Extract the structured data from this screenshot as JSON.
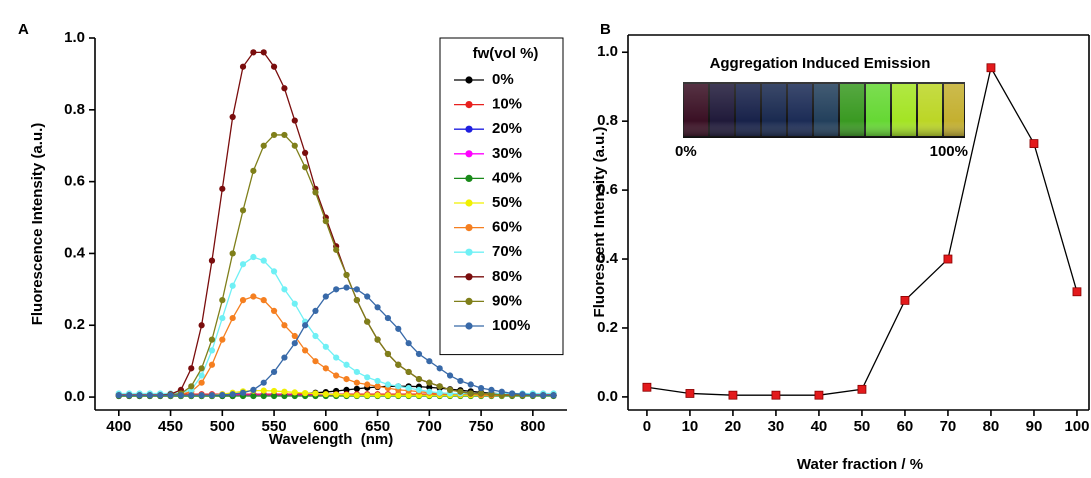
{
  "chart_data": [
    {
      "type": "line",
      "panel_label": "A",
      "x_label": "Wavelength  (nm)",
      "y_label": "Fluorescence Intensity (a.u.)",
      "legend_title": "fw(vol %)",
      "marker": "circle",
      "box": false,
      "xlim": [
        377,
        833
      ],
      "ylim": [
        -0.036,
        1.0
      ],
      "xticks": [
        400,
        450,
        500,
        550,
        600,
        650,
        700,
        750,
        800
      ],
      "yticks": [
        {
          "value": 0,
          "label": "0.0"
        },
        0.2,
        0.4,
        0.6,
        0.8,
        {
          "value": 1,
          "label": "1.0"
        }
      ],
      "x": [
        400,
        410,
        420,
        430,
        440,
        450,
        460,
        470,
        480,
        490,
        500,
        510,
        520,
        530,
        540,
        550,
        560,
        570,
        580,
        590,
        600,
        610,
        620,
        630,
        640,
        650,
        660,
        670,
        680,
        690,
        700,
        710,
        720,
        730,
        740,
        750,
        760,
        770,
        780,
        790,
        800,
        810,
        820
      ],
      "series": [
        {
          "name": "0%",
          "color": "#000000",
          "values": [
            0.003,
            0.003,
            0.003,
            0.003,
            0.003,
            0.003,
            0.003,
            0.003,
            0.003,
            0.003,
            0.003,
            0.003,
            0.004,
            0.004,
            0.005,
            0.006,
            0.007,
            0.008,
            0.01,
            0.012,
            0.014,
            0.017,
            0.02,
            0.023,
            0.026,
            0.028,
            0.03,
            0.03,
            0.03,
            0.029,
            0.027,
            0.025,
            0.022,
            0.019,
            0.016,
            0.013,
            0.011,
            0.009,
            0.007,
            0.006,
            0.005,
            0.005,
            0.004
          ]
        },
        {
          "name": "10%",
          "color": "#e8201e",
          "values": [
            0.008,
            0.008,
            0.008,
            0.008,
            0.008,
            0.008,
            0.008,
            0.008,
            0.008,
            0.008,
            0.008,
            0.008,
            0.008,
            0.008,
            0.008,
            0.008,
            0.008,
            0.008,
            0.008,
            0.008,
            0.008,
            0.008,
            0.008,
            0.008,
            0.008,
            0.008,
            0.008,
            0.008,
            0.008,
            0.008,
            0.008,
            0.008,
            0.008,
            0.008,
            0.008,
            0.008,
            0.008,
            0.008,
            0.008,
            0.008,
            0.008,
            0.008,
            0.008
          ]
        },
        {
          "name": "20%",
          "color": "#1f1fe0",
          "values": [
            0.005,
            0.005,
            0.005,
            0.005,
            0.005,
            0.005,
            0.005,
            0.005,
            0.005,
            0.005,
            0.005,
            0.005,
            0.005,
            0.005,
            0.005,
            0.005,
            0.005,
            0.005,
            0.005,
            0.005,
            0.005,
            0.005,
            0.005,
            0.005,
            0.005,
            0.005,
            0.005,
            0.005,
            0.005,
            0.005,
            0.005,
            0.005,
            0.005,
            0.005,
            0.005,
            0.005,
            0.005,
            0.005,
            0.005,
            0.005,
            0.005,
            0.005,
            0.005
          ]
        },
        {
          "name": "30%",
          "color": "#ff00ff",
          "values": [
            0.005,
            0.005,
            0.005,
            0.005,
            0.005,
            0.005,
            0.005,
            0.005,
            0.005,
            0.005,
            0.005,
            0.005,
            0.005,
            0.005,
            0.005,
            0.005,
            0.005,
            0.005,
            0.005,
            0.005,
            0.005,
            0.005,
            0.005,
            0.005,
            0.005,
            0.005,
            0.005,
            0.005,
            0.005,
            0.005,
            0.005,
            0.005,
            0.005,
            0.005,
            0.005,
            0.005,
            0.005,
            0.005,
            0.005,
            0.005,
            0.005,
            0.005,
            0.005
          ]
        },
        {
          "name": "40%",
          "color": "#1a8a1a",
          "values": [
            0.003,
            0.003,
            0.003,
            0.003,
            0.003,
            0.003,
            0.003,
            0.003,
            0.003,
            0.003,
            0.003,
            0.003,
            0.003,
            0.003,
            0.003,
            0.003,
            0.003,
            0.003,
            0.003,
            0.003,
            0.003,
            0.003,
            0.003,
            0.003,
            0.003,
            0.003,
            0.003,
            0.003,
            0.003,
            0.003,
            0.003,
            0.003,
            0.003,
            0.003,
            0.003,
            0.003,
            0.003,
            0.003,
            0.003,
            0.003,
            0.003,
            0.003,
            0.003
          ]
        },
        {
          "name": "50%",
          "color": "#f0f000",
          "values": [
            0.005,
            0.005,
            0.005,
            0.005,
            0.005,
            0.005,
            0.005,
            0.005,
            0.005,
            0.005,
            0.008,
            0.012,
            0.016,
            0.018,
            0.018,
            0.017,
            0.015,
            0.013,
            0.011,
            0.01,
            0.008,
            0.007,
            0.006,
            0.005,
            0.005,
            0.005,
            0.005,
            0.005,
            0.005,
            0.005,
            0.005,
            0.005,
            0.005,
            0.005,
            0.005,
            0.005,
            0.005,
            0.005,
            0.005,
            0.005,
            0.005,
            0.005,
            0.005
          ]
        },
        {
          "name": "60%",
          "color": "#f57f20",
          "values": [
            0.005,
            0.005,
            0.005,
            0.005,
            0.005,
            0.005,
            0.008,
            0.015,
            0.04,
            0.09,
            0.16,
            0.22,
            0.27,
            0.28,
            0.27,
            0.24,
            0.2,
            0.17,
            0.13,
            0.1,
            0.08,
            0.06,
            0.05,
            0.04,
            0.035,
            0.03,
            0.025,
            0.02,
            0.018,
            0.015,
            0.012,
            0.01,
            0.01,
            0.008,
            0.008,
            0.006,
            0.005,
            0.005,
            0.005,
            0.005,
            0.005,
            0.005,
            0.005
          ]
        },
        {
          "name": "70%",
          "color": "#6ff0f5",
          "values": [
            0.01,
            0.01,
            0.01,
            0.01,
            0.01,
            0.01,
            0.012,
            0.02,
            0.06,
            0.13,
            0.22,
            0.31,
            0.37,
            0.39,
            0.38,
            0.35,
            0.3,
            0.26,
            0.21,
            0.17,
            0.14,
            0.11,
            0.09,
            0.07,
            0.055,
            0.045,
            0.035,
            0.03,
            0.025,
            0.02,
            0.015,
            0.012,
            0.01,
            0.01,
            0.01,
            0.01,
            0.01,
            0.01,
            0.01,
            0.01,
            0.01,
            0.01,
            0.01
          ]
        },
        {
          "name": "80%",
          "color": "#7a0d0d",
          "values": [
            0.005,
            0.005,
            0.005,
            0.005,
            0.005,
            0.008,
            0.02,
            0.08,
            0.2,
            0.38,
            0.58,
            0.78,
            0.92,
            0.96,
            0.96,
            0.92,
            0.86,
            0.77,
            0.68,
            0.58,
            0.5,
            0.42,
            0.34,
            0.27,
            0.21,
            0.16,
            0.12,
            0.09,
            0.07,
            0.05,
            0.04,
            0.03,
            0.02,
            0.015,
            0.01,
            0.01,
            0.008,
            0.006,
            0.005,
            0.005,
            0.005,
            0.005,
            0.005
          ]
        },
        {
          "name": "90%",
          "color": "#7f7f1a",
          "values": [
            0.005,
            0.005,
            0.005,
            0.005,
            0.005,
            0.006,
            0.01,
            0.03,
            0.08,
            0.16,
            0.27,
            0.4,
            0.52,
            0.63,
            0.7,
            0.73,
            0.73,
            0.7,
            0.64,
            0.57,
            0.49,
            0.41,
            0.34,
            0.27,
            0.21,
            0.16,
            0.12,
            0.09,
            0.07,
            0.05,
            0.04,
            0.03,
            0.02,
            0.015,
            0.01,
            0.01,
            0.008,
            0.006,
            0.005,
            0.005,
            0.005,
            0.005,
            0.005
          ]
        },
        {
          "name": "100%",
          "color": "#3869a8",
          "values": [
            0.005,
            0.005,
            0.005,
            0.005,
            0.005,
            0.005,
            0.005,
            0.005,
            0.005,
            0.005,
            0.006,
            0.008,
            0.012,
            0.02,
            0.04,
            0.07,
            0.11,
            0.15,
            0.2,
            0.24,
            0.28,
            0.3,
            0.305,
            0.3,
            0.28,
            0.25,
            0.22,
            0.19,
            0.15,
            0.12,
            0.1,
            0.08,
            0.06,
            0.045,
            0.035,
            0.025,
            0.02,
            0.015,
            0.01,
            0.008,
            0.006,
            0.005,
            0.005
          ]
        }
      ]
    },
    {
      "type": "line",
      "panel_label": "B",
      "x_label": "Water fraction / %",
      "y_label": "Fluorescent Intensity (a.u.)",
      "marker": "square",
      "box": true,
      "xlim": [
        -4.4,
        102.8
      ],
      "ylim": [
        -0.038,
        1.05
      ],
      "xticks": [
        0,
        10,
        20,
        30,
        40,
        50,
        60,
        70,
        80,
        90,
        100
      ],
      "yticks": [
        {
          "value": 0,
          "label": "0.0"
        },
        0.2,
        0.4,
        0.6,
        0.8,
        {
          "value": 1,
          "label": "1.0"
        }
      ],
      "x": [
        0,
        10,
        20,
        30,
        40,
        50,
        60,
        70,
        80,
        90,
        100
      ],
      "series": [
        {
          "color": "#000000",
          "marker_color": "#e31a1c",
          "values": [
            0.028,
            0.01,
            0.005,
            0.005,
            0.005,
            0.022,
            0.28,
            0.4,
            0.955,
            0.735,
            0.305
          ]
        }
      ],
      "inset": {
        "title": "Aggregation Induced Emission",
        "left_label": "0%",
        "right_label": "100%"
      }
    }
  ]
}
